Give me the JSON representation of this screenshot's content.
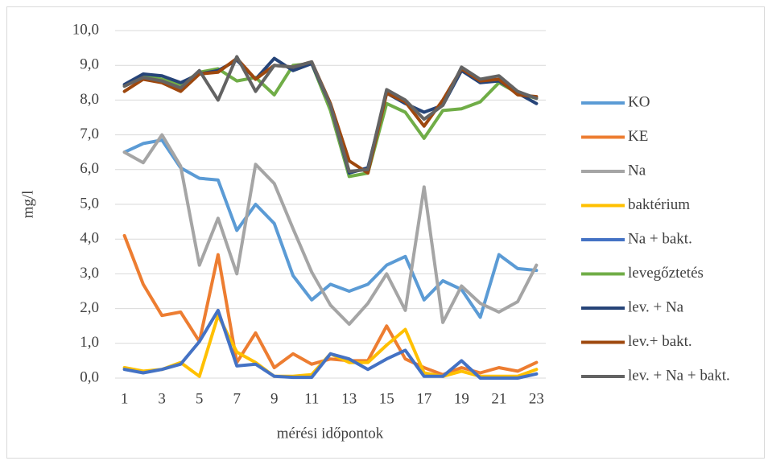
{
  "chart_data": {
    "type": "line",
    "x_label": "mérési időpontok",
    "y_label": "mg/l",
    "categories": [
      1,
      null,
      3,
      null,
      5,
      null,
      7,
      null,
      9,
      null,
      11,
      null,
      13,
      null,
      15,
      null,
      17,
      null,
      19,
      null,
      21,
      null,
      23
    ],
    "ylim": [
      0,
      10
    ],
    "yticks": [
      {
        "value": 0,
        "label": "0,0"
      },
      {
        "value": 1,
        "label": "1,0"
      },
      {
        "value": 2,
        "label": "2,0"
      },
      {
        "value": 3,
        "label": "3,0"
      },
      {
        "value": 4,
        "label": "4,0"
      },
      {
        "value": 5,
        "label": "5,0"
      },
      {
        "value": 6,
        "label": "6,0"
      },
      {
        "value": 7,
        "label": "7,0"
      },
      {
        "value": 8,
        "label": "8,0"
      },
      {
        "value": 9,
        "label": "9,0"
      },
      {
        "value": 10,
        "label": "10,0"
      }
    ],
    "grid": true,
    "legend": "right",
    "series": [
      {
        "name": "KO",
        "color": "#5b9bd5",
        "values": [
          6.5,
          6.75,
          6.85,
          6.05,
          5.75,
          5.7,
          4.25,
          5.0,
          4.45,
          2.95,
          2.25,
          2.7,
          2.5,
          2.7,
          3.25,
          3.5,
          2.25,
          2.8,
          2.55,
          1.75,
          3.55,
          3.15,
          3.1
        ]
      },
      {
        "name": "KE",
        "color": "#ed7d31",
        "values": [
          4.1,
          2.7,
          1.8,
          1.9,
          1.05,
          3.55,
          0.45,
          1.3,
          0.3,
          0.7,
          0.4,
          0.55,
          0.5,
          0.5,
          1.5,
          0.55,
          0.3,
          0.1,
          0.3,
          0.15,
          0.3,
          0.2,
          0.45
        ]
      },
      {
        "name": "Na",
        "color": "#a5a5a5",
        "values": [
          6.5,
          6.2,
          7.0,
          6.1,
          3.25,
          4.6,
          3.0,
          6.15,
          5.6,
          4.3,
          3.05,
          2.1,
          1.55,
          2.15,
          3.0,
          1.95,
          5.5,
          1.6,
          2.65,
          2.15,
          1.9,
          2.2,
          3.25
        ]
      },
      {
        "name": "baktérium",
        "color": "#ffc000",
        "values": [
          0.3,
          0.2,
          0.25,
          0.45,
          0.05,
          1.8,
          0.75,
          0.45,
          0.05,
          0.05,
          0.1,
          0.7,
          0.45,
          0.45,
          0.95,
          1.4,
          0.15,
          0.05,
          0.2,
          0.05,
          0.05,
          0.05,
          0.25
        ]
      },
      {
        "name": "Na + bakt.",
        "color": "#4472c4",
        "values": [
          0.25,
          0.15,
          0.25,
          0.4,
          1.05,
          1.95,
          0.35,
          0.4,
          0.05,
          0.02,
          0.02,
          0.7,
          0.55,
          0.25,
          0.55,
          0.8,
          0.05,
          0.05,
          0.5,
          0,
          0,
          0,
          0.12
        ]
      },
      {
        "name": "levegőztetés",
        "color": "#70ad47",
        "values": [
          8.4,
          8.7,
          8.6,
          8.45,
          8.8,
          8.9,
          8.55,
          8.65,
          8.15,
          9.0,
          9.05,
          7.7,
          5.8,
          5.9,
          7.9,
          7.65,
          6.9,
          7.7,
          7.75,
          7.95,
          8.5,
          8.2,
          8.05
        ]
      },
      {
        "name": "lev. + Na",
        "color": "#264478",
        "values": [
          8.45,
          8.75,
          8.7,
          8.5,
          8.75,
          8.85,
          9.15,
          8.6,
          9.2,
          8.85,
          9.05,
          7.85,
          5.9,
          6.05,
          8.2,
          7.9,
          7.65,
          7.85,
          8.85,
          8.5,
          8.55,
          8.2,
          7.9
        ]
      },
      {
        "name": "lev.+ bakt.",
        "color": "#9e480e",
        "values": [
          8.25,
          8.6,
          8.5,
          8.25,
          8.75,
          8.8,
          9.2,
          8.6,
          9.0,
          8.95,
          9.1,
          7.9,
          6.25,
          5.9,
          8.2,
          7.95,
          7.25,
          8.0,
          8.9,
          8.55,
          8.6,
          8.15,
          8.1
        ]
      },
      {
        "name": "lev. + Na + bakt.",
        "color": "#636363",
        "values": [
          8.4,
          8.65,
          8.55,
          8.35,
          8.85,
          8.0,
          9.25,
          8.25,
          9.0,
          8.95,
          9.1,
          7.85,
          5.95,
          6.0,
          8.3,
          8.0,
          7.45,
          7.85,
          8.95,
          8.6,
          8.7,
          8.25,
          8.05
        ]
      }
    ]
  }
}
